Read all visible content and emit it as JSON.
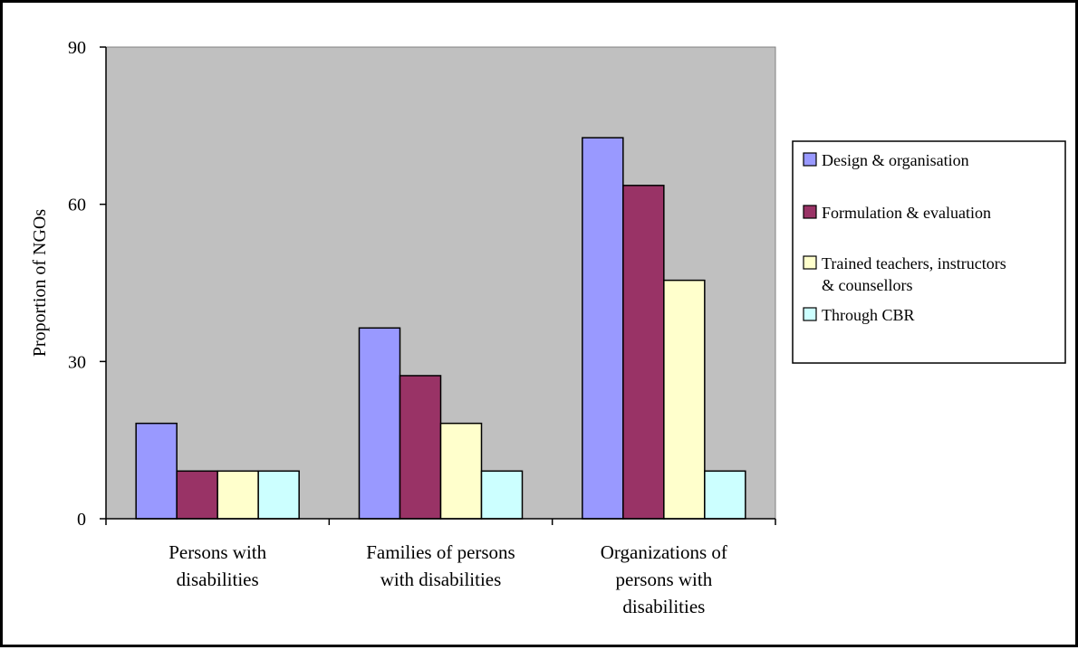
{
  "chart_data": {
    "type": "bar",
    "title": "",
    "xlabel": "",
    "ylabel": "Proportion of NGOs",
    "ylim": [
      0,
      90
    ],
    "yticks": [
      0,
      30,
      60,
      90
    ],
    "grid": false,
    "legend_position": "right",
    "categories": [
      [
        "Persons with",
        "disabilities"
      ],
      [
        "Families of persons",
        "with disabilities"
      ],
      [
        "Organizations of",
        "persons with",
        "disabilities"
      ]
    ],
    "series": [
      {
        "name": [
          "Design & organisation"
        ],
        "color": "#9999ff",
        "values": [
          18.2,
          36.4,
          72.7
        ]
      },
      {
        "name": [
          "Formulation & evaluation"
        ],
        "color": "#993366",
        "values": [
          9.1,
          27.3,
          63.6
        ]
      },
      {
        "name": [
          "Trained teachers, instructors",
          "& counsellors"
        ],
        "color": "#ffffcc",
        "values": [
          9.1,
          18.2,
          45.5
        ]
      },
      {
        "name": [
          "Through CBR"
        ],
        "color": "#ccffff",
        "values": [
          9.1,
          9.1,
          9.1
        ]
      }
    ],
    "colors": {
      "plot_background": "#c0c0c0",
      "bar_outline": "#000000",
      "axis": "#000000"
    }
  }
}
